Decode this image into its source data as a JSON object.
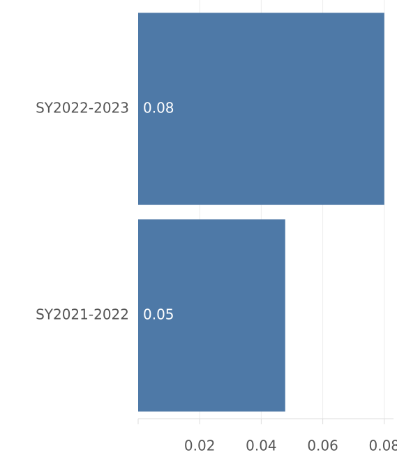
{
  "chart_data": {
    "type": "bar",
    "orientation": "horizontal",
    "categories": [
      "SY2022-2023",
      "SY2021-2022"
    ],
    "values": [
      0.08,
      0.0478
    ],
    "value_labels": [
      "0.08",
      "0.05"
    ],
    "color": "#4e79a7",
    "xlim": [
      0,
      0.083
    ],
    "xticks": [
      0.02,
      0.04,
      0.06,
      0.08
    ],
    "grid": true
  }
}
